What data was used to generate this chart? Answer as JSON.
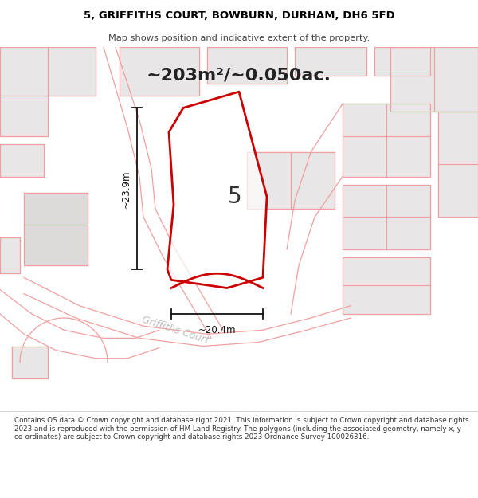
{
  "title_line1": "5, GRIFFITHS COURT, BOWBURN, DURHAM, DH6 5FD",
  "title_line2": "Map shows position and indicative extent of the property.",
  "area_text": "~203m²/~0.050ac.",
  "plot_number": "5",
  "street_label": "Griffiths Court",
  "dim_height": "~23.9m",
  "dim_width": "~20.4m",
  "footer": "Contains OS data © Crown copyright and database right 2021. This information is subject to Crown copyright and database rights 2023 and is reproduced with the permission of HM Land Registry. The polygons (including the associated geometry, namely x, y co-ordinates) are subject to Crown copyright and database rights 2023 Ordnance Survey 100026316.",
  "map_bg": "#f5f3f3",
  "building_fill": "#e8e6e6",
  "building_fill2": "#dddada",
  "plot_color": "#cc0000",
  "outline_color": "#f0a0a0",
  "dim_color": "#111111",
  "street_color": "#bbbbbb",
  "title_bg": "#ffffff",
  "footer_bg": "#ffffff",
  "text_color": "#222222"
}
